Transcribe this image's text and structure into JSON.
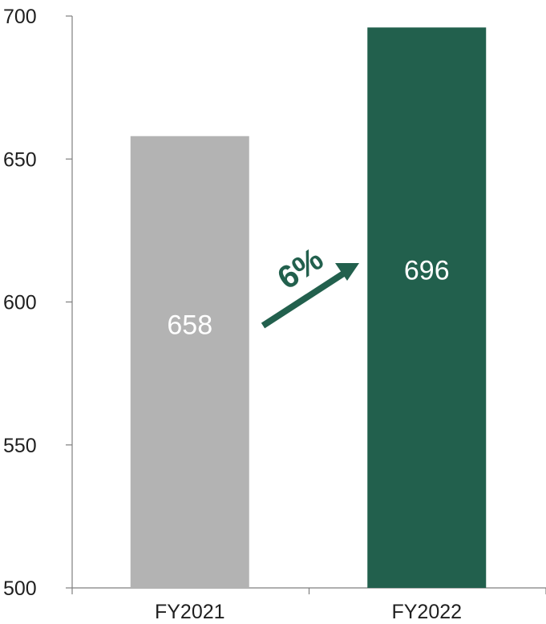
{
  "chart_data": {
    "type": "bar",
    "categories": [
      "FY2021",
      "FY2022"
    ],
    "values": [
      658,
      696
    ],
    "value_labels": [
      "658",
      "696"
    ],
    "bar_colors": [
      "#b3b3b3",
      "#22604d"
    ],
    "ylim": [
      500,
      700
    ],
    "yticks": [
      500,
      550,
      600,
      650,
      700
    ],
    "ytick_labels": [
      "500",
      "550",
      "600",
      "650",
      "700"
    ],
    "grid": false,
    "annotation": {
      "text": "6%",
      "color": "#22604d",
      "arrow": "up-right between bars"
    }
  }
}
